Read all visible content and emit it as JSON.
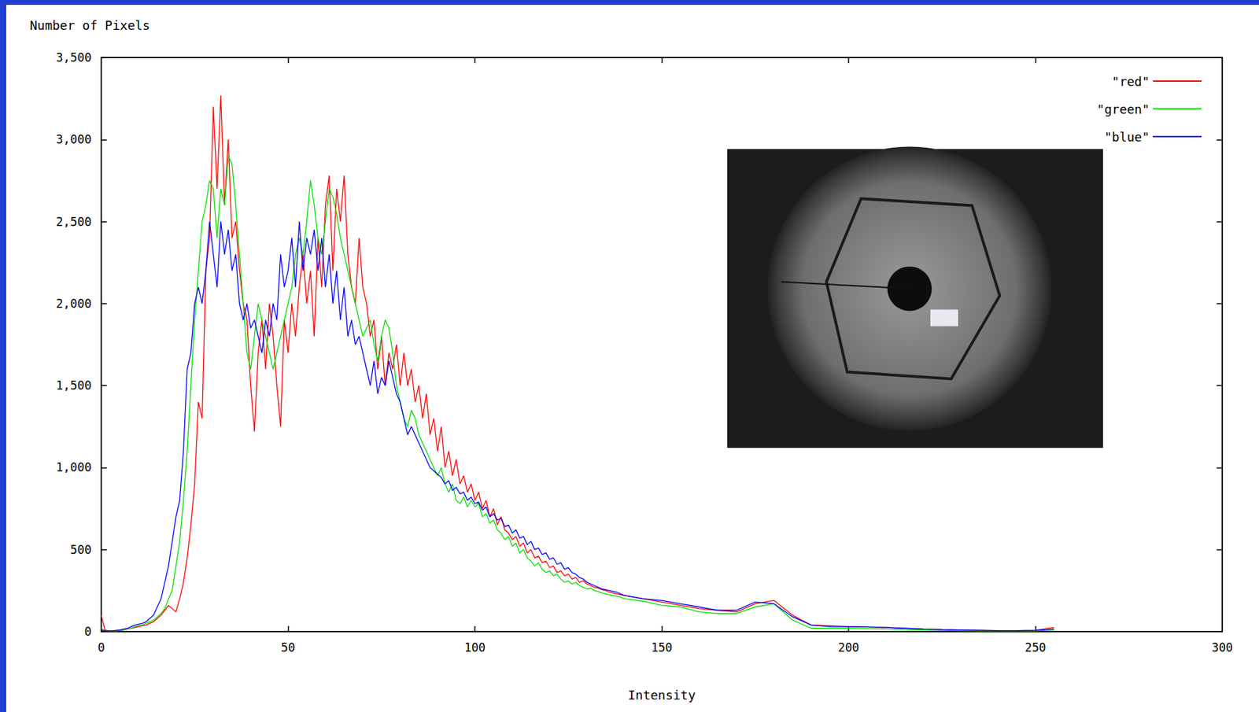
{
  "chart_data": {
    "type": "line",
    "x_label": "Intensity",
    "y_label": "Number of Pixels",
    "xlim": [
      0,
      300
    ],
    "xticks": [
      0,
      50,
      100,
      150,
      200,
      250,
      300
    ],
    "ylim": [
      0,
      3500
    ],
    "yticks": [
      0,
      500,
      1000,
      1500,
      2000,
      2500,
      3000,
      3500
    ],
    "grid": false,
    "legend": "upper right",
    "x": [
      0,
      1,
      2,
      3,
      4,
      5,
      6,
      7,
      8,
      9,
      10,
      11,
      12,
      13,
      14,
      15,
      16,
      17,
      18,
      19,
      20,
      21,
      22,
      23,
      24,
      25,
      26,
      27,
      28,
      29,
      30,
      31,
      32,
      33,
      34,
      35,
      36,
      37,
      38,
      39,
      40,
      41,
      42,
      43,
      44,
      45,
      46,
      47,
      48,
      49,
      50,
      51,
      52,
      53,
      54,
      55,
      56,
      57,
      58,
      59,
      60,
      61,
      62,
      63,
      64,
      65,
      66,
      67,
      68,
      69,
      70,
      71,
      72,
      73,
      74,
      75,
      76,
      77,
      78,
      79,
      80,
      81,
      82,
      83,
      84,
      85,
      86,
      87,
      88,
      89,
      90,
      91,
      92,
      93,
      94,
      95,
      96,
      97,
      98,
      99,
      100,
      101,
      102,
      103,
      104,
      105,
      106,
      107,
      108,
      109,
      110,
      111,
      112,
      113,
      114,
      115,
      116,
      117,
      118,
      119,
      120,
      121,
      122,
      123,
      124,
      125,
      126,
      127,
      128,
      129,
      130,
      131,
      132,
      133,
      134,
      135,
      136,
      137,
      138,
      139,
      140,
      145,
      150,
      155,
      160,
      165,
      170,
      175,
      180,
      185,
      190,
      195,
      200,
      205,
      210,
      215,
      220,
      225,
      230,
      235,
      240,
      245,
      250,
      255
    ],
    "series": [
      {
        "name": "\"red\"",
        "color": "#ff0000",
        "values": [
          100,
          10,
          5,
          5,
          5,
          8,
          10,
          15,
          20,
          25,
          30,
          35,
          40,
          50,
          60,
          80,
          100,
          130,
          160,
          140,
          120,
          200,
          300,
          450,
          650,
          900,
          1400,
          1300,
          2200,
          2400,
          3200,
          2700,
          3270,
          2600,
          3000,
          2400,
          2500,
          2200,
          2000,
          1900,
          1500,
          1220,
          1700,
          1900,
          1600,
          2000,
          1800,
          1500,
          1250,
          1900,
          1700,
          2000,
          1800,
          2100,
          2300,
          2000,
          2200,
          1800,
          2400,
          2100,
          2600,
          2780,
          2200,
          2700,
          2500,
          2780,
          2300,
          2100,
          2000,
          2400,
          2100,
          2000,
          1800,
          1900,
          1600,
          1800,
          1500,
          1700,
          1600,
          1750,
          1500,
          1700,
          1500,
          1600,
          1400,
          1500,
          1300,
          1450,
          1200,
          1300,
          1100,
          1250,
          1000,
          1100,
          950,
          1050,
          900,
          950,
          850,
          900,
          800,
          850,
          750,
          800,
          700,
          750,
          650,
          700,
          620,
          600,
          560,
          580,
          520,
          540,
          480,
          500,
          450,
          460,
          420,
          430,
          390,
          400,
          360,
          370,
          340,
          350,
          320,
          330,
          300,
          310,
          290,
          280,
          270,
          265,
          255,
          250,
          240,
          235,
          230,
          225,
          220,
          200,
          180,
          160,
          140,
          130,
          120,
          170,
          190,
          100,
          40,
          35,
          30,
          28,
          25,
          20,
          15,
          12,
          10,
          8,
          6,
          6,
          8,
          25
        ]
      },
      {
        "name": "\"green\"",
        "color": "#00e000",
        "values": [
          20,
          5,
          5,
          5,
          5,
          8,
          10,
          15,
          20,
          30,
          35,
          40,
          50,
          60,
          70,
          90,
          110,
          140,
          200,
          250,
          400,
          550,
          800,
          1100,
          1500,
          1900,
          2200,
          2500,
          2600,
          2750,
          2700,
          2400,
          2700,
          2600,
          2900,
          2850,
          2600,
          2300,
          2000,
          1700,
          1600,
          1800,
          2000,
          1900,
          1800,
          1700,
          1600,
          1700,
          1800,
          1900,
          2000,
          2100,
          2300,
          2400,
          2300,
          2500,
          2750,
          2600,
          2400,
          2300,
          2500,
          2700,
          2650,
          2550,
          2400,
          2300,
          2200,
          2100,
          2000,
          1900,
          1800,
          1850,
          1900,
          1750,
          1650,
          1800,
          1900,
          1850,
          1700,
          1500,
          1400,
          1300,
          1250,
          1350,
          1300,
          1200,
          1150,
          1100,
          1050,
          1000,
          950,
          1000,
          900,
          850,
          900,
          800,
          780,
          820,
          760,
          800,
          760,
          780,
          700,
          720,
          660,
          680,
          620,
          600,
          560,
          580,
          520,
          540,
          480,
          500,
          450,
          430,
          400,
          420,
          380,
          360,
          370,
          340,
          350,
          320,
          300,
          310,
          290,
          300,
          280,
          270,
          260,
          265,
          250,
          245,
          235,
          230,
          225,
          220,
          215,
          210,
          200,
          185,
          160,
          150,
          120,
          110,
          110,
          150,
          170,
          70,
          20,
          20,
          20,
          18,
          15,
          12,
          10,
          8,
          6,
          5,
          5,
          5,
          5,
          10
        ]
      },
      {
        "name": "\"blue\"",
        "color": "#0000ff",
        "values": [
          10,
          5,
          5,
          5,
          8,
          10,
          15,
          20,
          30,
          40,
          45,
          50,
          60,
          80,
          100,
          150,
          200,
          300,
          400,
          550,
          700,
          800,
          1100,
          1600,
          1700,
          2000,
          2100,
          2000,
          2200,
          2500,
          2300,
          2100,
          2500,
          2300,
          2450,
          2200,
          2300,
          2000,
          1900,
          2000,
          1850,
          1900,
          1800,
          1700,
          1900,
          1800,
          2000,
          1900,
          2300,
          2100,
          2200,
          2400,
          2100,
          2500,
          2200,
          2400,
          2300,
          2450,
          2200,
          2400,
          2100,
          2300,
          2000,
          2200,
          1900,
          2100,
          1800,
          1900,
          1750,
          1800,
          1700,
          1600,
          1500,
          1650,
          1450,
          1550,
          1500,
          1650,
          1550,
          1450,
          1400,
          1300,
          1200,
          1250,
          1200,
          1150,
          1100,
          1050,
          1000,
          980,
          960,
          940,
          900,
          920,
          860,
          880,
          840,
          850,
          800,
          820,
          780,
          790,
          740,
          760,
          700,
          720,
          680,
          690,
          640,
          650,
          600,
          620,
          570,
          580,
          530,
          550,
          500,
          510,
          470,
          480,
          440,
          450,
          410,
          420,
          380,
          390,
          360,
          350,
          330,
          320,
          300,
          290,
          280,
          270,
          260,
          255,
          250,
          245,
          240,
          230,
          220,
          200,
          190,
          170,
          150,
          130,
          130,
          180,
          170,
          90,
          40,
          30,
          30,
          28,
          25,
          20,
          15,
          12,
          10,
          8,
          6,
          6,
          8,
          15
        ]
      }
    ]
  }
}
